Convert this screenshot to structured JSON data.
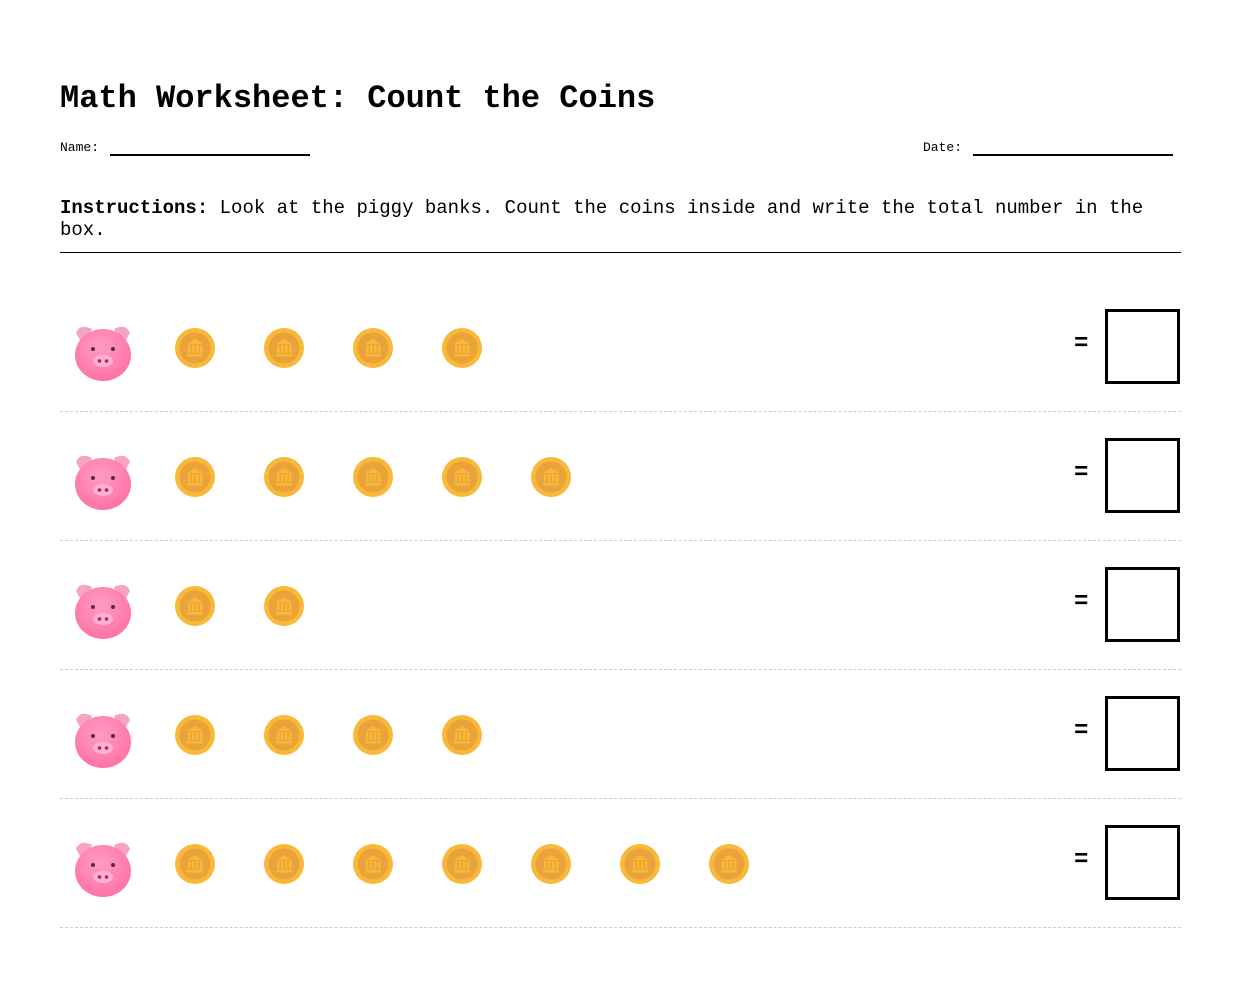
{
  "title": "Math Worksheet: Count the Coins",
  "name_label": "Name:",
  "date_label": "Date:",
  "instructions": {
    "label": "Instructions:",
    "text": " Look at the piggy banks. Count the coins inside and write the total number in the box."
  },
  "equals": "=",
  "icons": {
    "bank": "piggy-face-icon",
    "coin": "coin-bank-icon"
  },
  "colors": {
    "coin_outer": "#f8b938",
    "coin_inner": "#eaa23a",
    "pig": "#ff6fa3"
  },
  "rows": [
    {
      "coins": 4,
      "answer": ""
    },
    {
      "coins": 5,
      "answer": ""
    },
    {
      "coins": 2,
      "answer": ""
    },
    {
      "coins": 4,
      "answer": ""
    },
    {
      "coins": 7,
      "answer": ""
    }
  ]
}
